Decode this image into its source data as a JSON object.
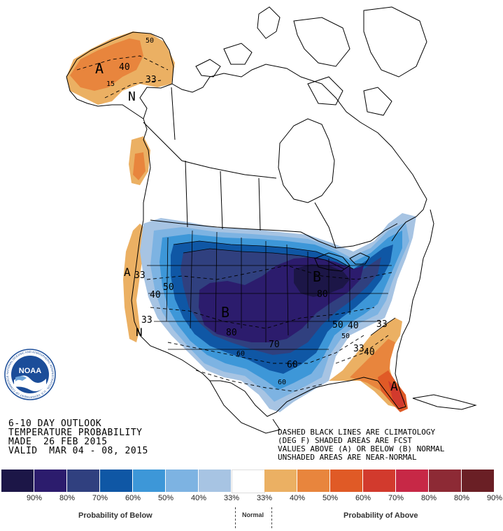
{
  "map": {
    "region": "North America",
    "region_markers": [
      {
        "id": "alaska-above",
        "text": "A"
      },
      {
        "id": "alaska-normal",
        "text": "N"
      },
      {
        "id": "california-above",
        "text": "A"
      },
      {
        "id": "california-normal",
        "text": "N"
      },
      {
        "id": "central-below",
        "text": "B"
      },
      {
        "id": "greatlakes-below",
        "text": "B"
      },
      {
        "id": "florida-above",
        "text": "A"
      }
    ],
    "contour_labels": [
      {
        "id": "ak-50",
        "text": "50"
      },
      {
        "id": "ak-40",
        "text": "40"
      },
      {
        "id": "ak-33",
        "text": "33"
      },
      {
        "id": "ak-15",
        "text": "15"
      },
      {
        "id": "ca-33",
        "text": "33"
      },
      {
        "id": "w-40",
        "text": "40"
      },
      {
        "id": "w-50",
        "text": "50"
      },
      {
        "id": "sw-33",
        "text": "33"
      },
      {
        "id": "c-80",
        "text": "80"
      },
      {
        "id": "c-60",
        "text": "60"
      },
      {
        "id": "s-70",
        "text": "70"
      },
      {
        "id": "gl-80",
        "text": "80"
      },
      {
        "id": "gl-50",
        "text": "50"
      },
      {
        "id": "se-50",
        "text": "50"
      },
      {
        "id": "se-40",
        "text": "40"
      },
      {
        "id": "se-33a",
        "text": "33"
      },
      {
        "id": "se-33b",
        "text": "33"
      },
      {
        "id": "fl-40",
        "text": "40"
      },
      {
        "id": "gulf-60",
        "text": "60"
      },
      {
        "id": "tx-60",
        "text": "60"
      }
    ]
  },
  "logo": {
    "text": "NOAA",
    "ring_text": "NATIONAL OCEANIC AND ATMOSPHERIC ADMINISTRATION · U.S. DEPARTMENT OF COMMERCE"
  },
  "title_block": {
    "line1": "6-10 DAY OUTLOOK",
    "line2": "TEMPERATURE PROBABILITY",
    "line3": "MADE  26 FEB 2015",
    "line4": "VALID  MAR 04 - 08, 2015"
  },
  "notes": {
    "line1": "DASHED BLACK LINES ARE CLIMATOLOGY",
    "line2": "(DEG F) SHADED AREAS ARE FCST",
    "line3": "VALUES ABOVE (A) OR BELOW (B) NORMAL",
    "line4": "UNSHADED AREAS ARE NEAR-NORMAL"
  },
  "legend": {
    "swatches": [
      {
        "color": "#1c1647",
        "label": "90%"
      },
      {
        "color": "#2c1c6d",
        "label": "80%"
      },
      {
        "color": "#30407f",
        "label": "70%"
      },
      {
        "color": "#0f57a5",
        "label": "60%"
      },
      {
        "color": "#3d97d8",
        "label": "50%"
      },
      {
        "color": "#7db3e2",
        "label": "40%"
      },
      {
        "color": "#a7c4e3",
        "label": "33%"
      },
      {
        "color": "#ffffff",
        "label": "33%"
      },
      {
        "color": "#ebb063",
        "label": "40%"
      },
      {
        "color": "#e8853d",
        "label": "50%"
      },
      {
        "color": "#e05a26",
        "label": "60%"
      },
      {
        "color": "#d23a2d",
        "label": "70%"
      },
      {
        "color": "#c72846",
        "label": "80%"
      },
      {
        "color": "#8d2a35",
        "label": "80%"
      },
      {
        "color": "#6a1f25",
        "label": "90%"
      }
    ],
    "below_caption": "Probability of Below",
    "normal_caption": "Normal",
    "above_caption": "Probability of Above"
  },
  "colors": {
    "below_dark": "#2c1c6d",
    "below_mid": "#0f57a5",
    "below_light": "#a7c4e3",
    "above_light": "#ebb063",
    "above_mid": "#e8853d",
    "above_dark": "#d23a2d"
  }
}
